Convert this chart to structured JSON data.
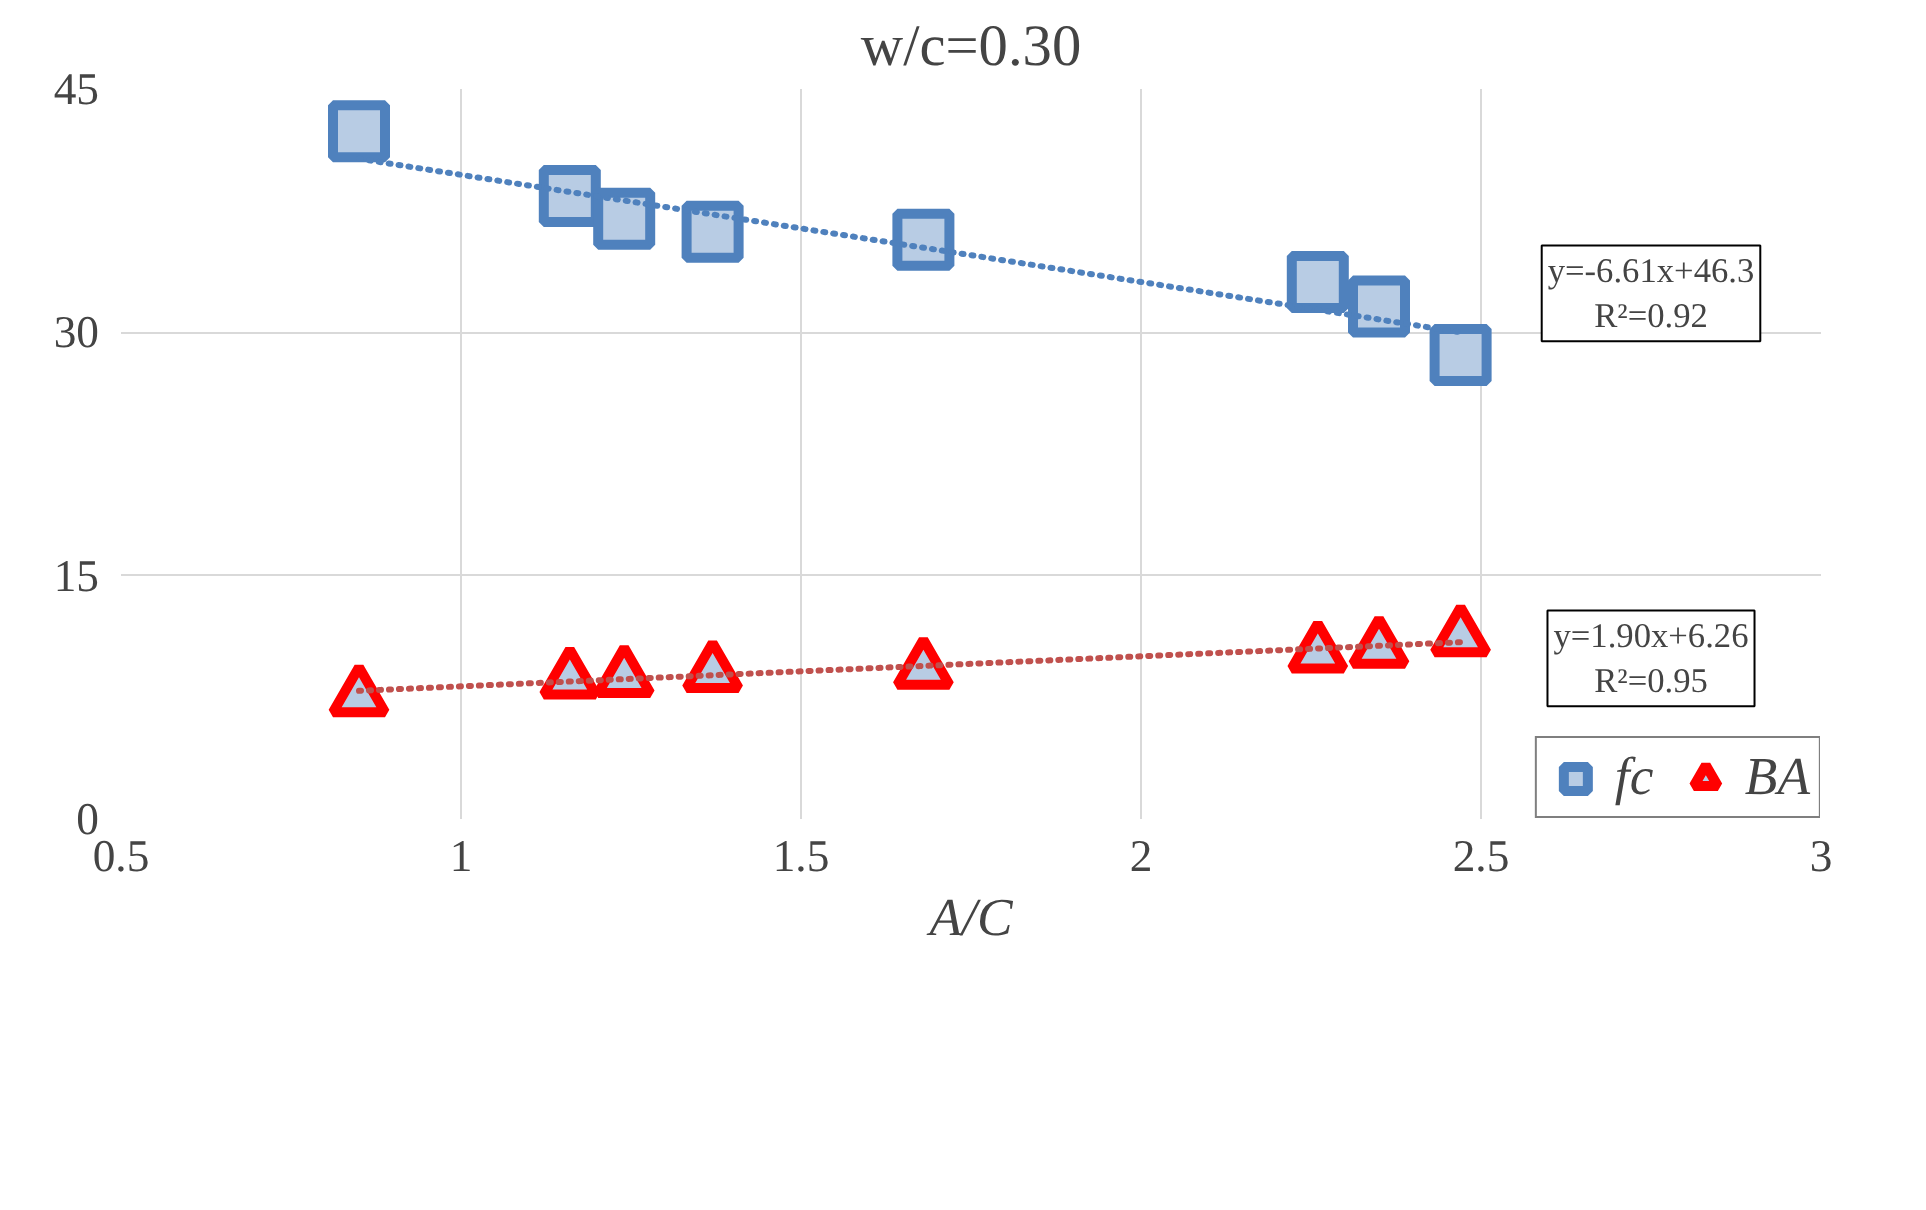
{
  "chart_data": {
    "type": "scatter",
    "title": "w/c=0.30",
    "xlabel": "A/C",
    "xlim": [
      0.5,
      3
    ],
    "xticks": [
      0.5,
      1,
      1.5,
      2,
      2.5,
      3
    ],
    "ylim": [
      0,
      45
    ],
    "yticks": [
      0,
      15,
      30,
      45
    ],
    "grid": true,
    "legend": "bottom right",
    "series": [
      {
        "name": "fc",
        "color": "#4f81bd",
        "marker": "square",
        "x": [
          0.85,
          1.16,
          1.24,
          1.37,
          1.68,
          2.26,
          2.35,
          2.47
        ],
        "values": [
          42.4,
          38.4,
          37.0,
          36.2,
          35.7,
          33.1,
          31.6,
          28.6
        ]
      },
      {
        "name": "BA",
        "color": "#ff0000",
        "marker": "triangle",
        "x": [
          0.85,
          1.16,
          1.24,
          1.37,
          1.68,
          2.26,
          2.35,
          2.47
        ],
        "values": [
          7.5,
          8.6,
          8.7,
          9.0,
          9.2,
          10.2,
          10.5,
          11.2
        ]
      },
      {
        "type": "line",
        "color": "#4f81bd",
        "marker": "none",
        "line_style": "dotted",
        "x": [
          0.85,
          2.47
        ],
        "values": [
          40.7,
          30.0
        ]
      },
      {
        "type": "line",
        "color": "#c0504d",
        "marker": "none",
        "line_style": "dotted",
        "x": [
          0.85,
          2.47
        ],
        "values": [
          7.9,
          10.9
        ]
      }
    ],
    "annotations": [
      "y=-6.61x+46.3\nR²=0.92",
      "y=1.90x+6.26\nR²=0.95"
    ]
  }
}
